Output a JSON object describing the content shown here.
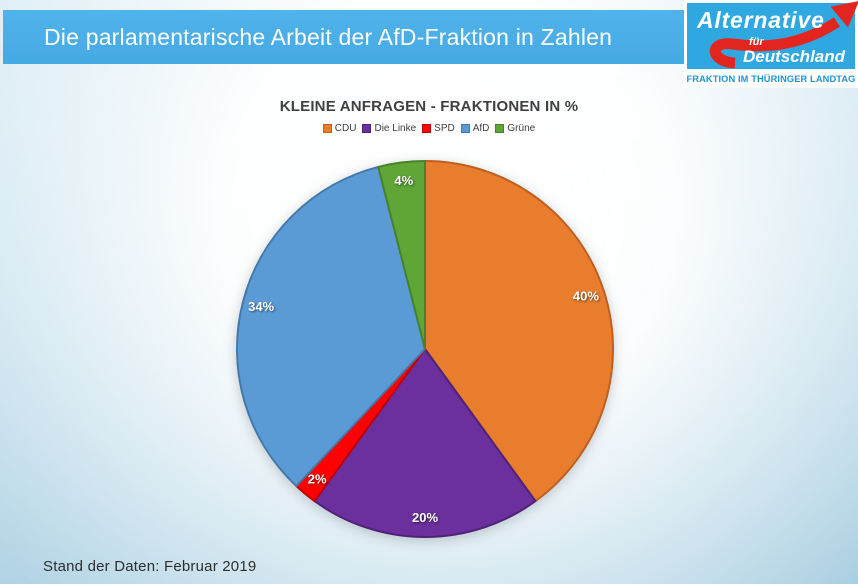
{
  "header": {
    "title": "Die parlamentarische Arbeit der AfD-Fraktion in Zahlen"
  },
  "logo": {
    "line1": "Alternative",
    "line2": "für",
    "line3": "Deutschland",
    "subtitle": "FRAKTION IM THÜRINGER LANDTAG",
    "brand_blue": "#2FA8E1",
    "brand_red": "#E2251F"
  },
  "chart_data": {
    "type": "pie",
    "title": "KLEINE ANFRAGEN - FRAKTIONEN IN %",
    "labels": [
      "CDU",
      "Die Linke",
      "SPD",
      "AfD",
      "Grüne"
    ],
    "values": [
      40,
      20,
      2,
      34,
      4
    ],
    "data_labels": [
      "40%",
      "20%",
      "2%",
      "34%",
      "4%"
    ],
    "colors": [
      "#E87D2E",
      "#6C2F9E",
      "#FE0000",
      "#5B9BD5",
      "#5FA637"
    ],
    "border_colors": [
      "#C05F1E",
      "#4F2277",
      "#C00000",
      "#4379A8",
      "#47822A"
    ],
    "legend_position": "top",
    "start_angle_deg": 0,
    "direction": "clockwise",
    "label_radius_ratio": 0.9
  },
  "footer": {
    "text": "Stand der Daten: Februar 2019"
  }
}
